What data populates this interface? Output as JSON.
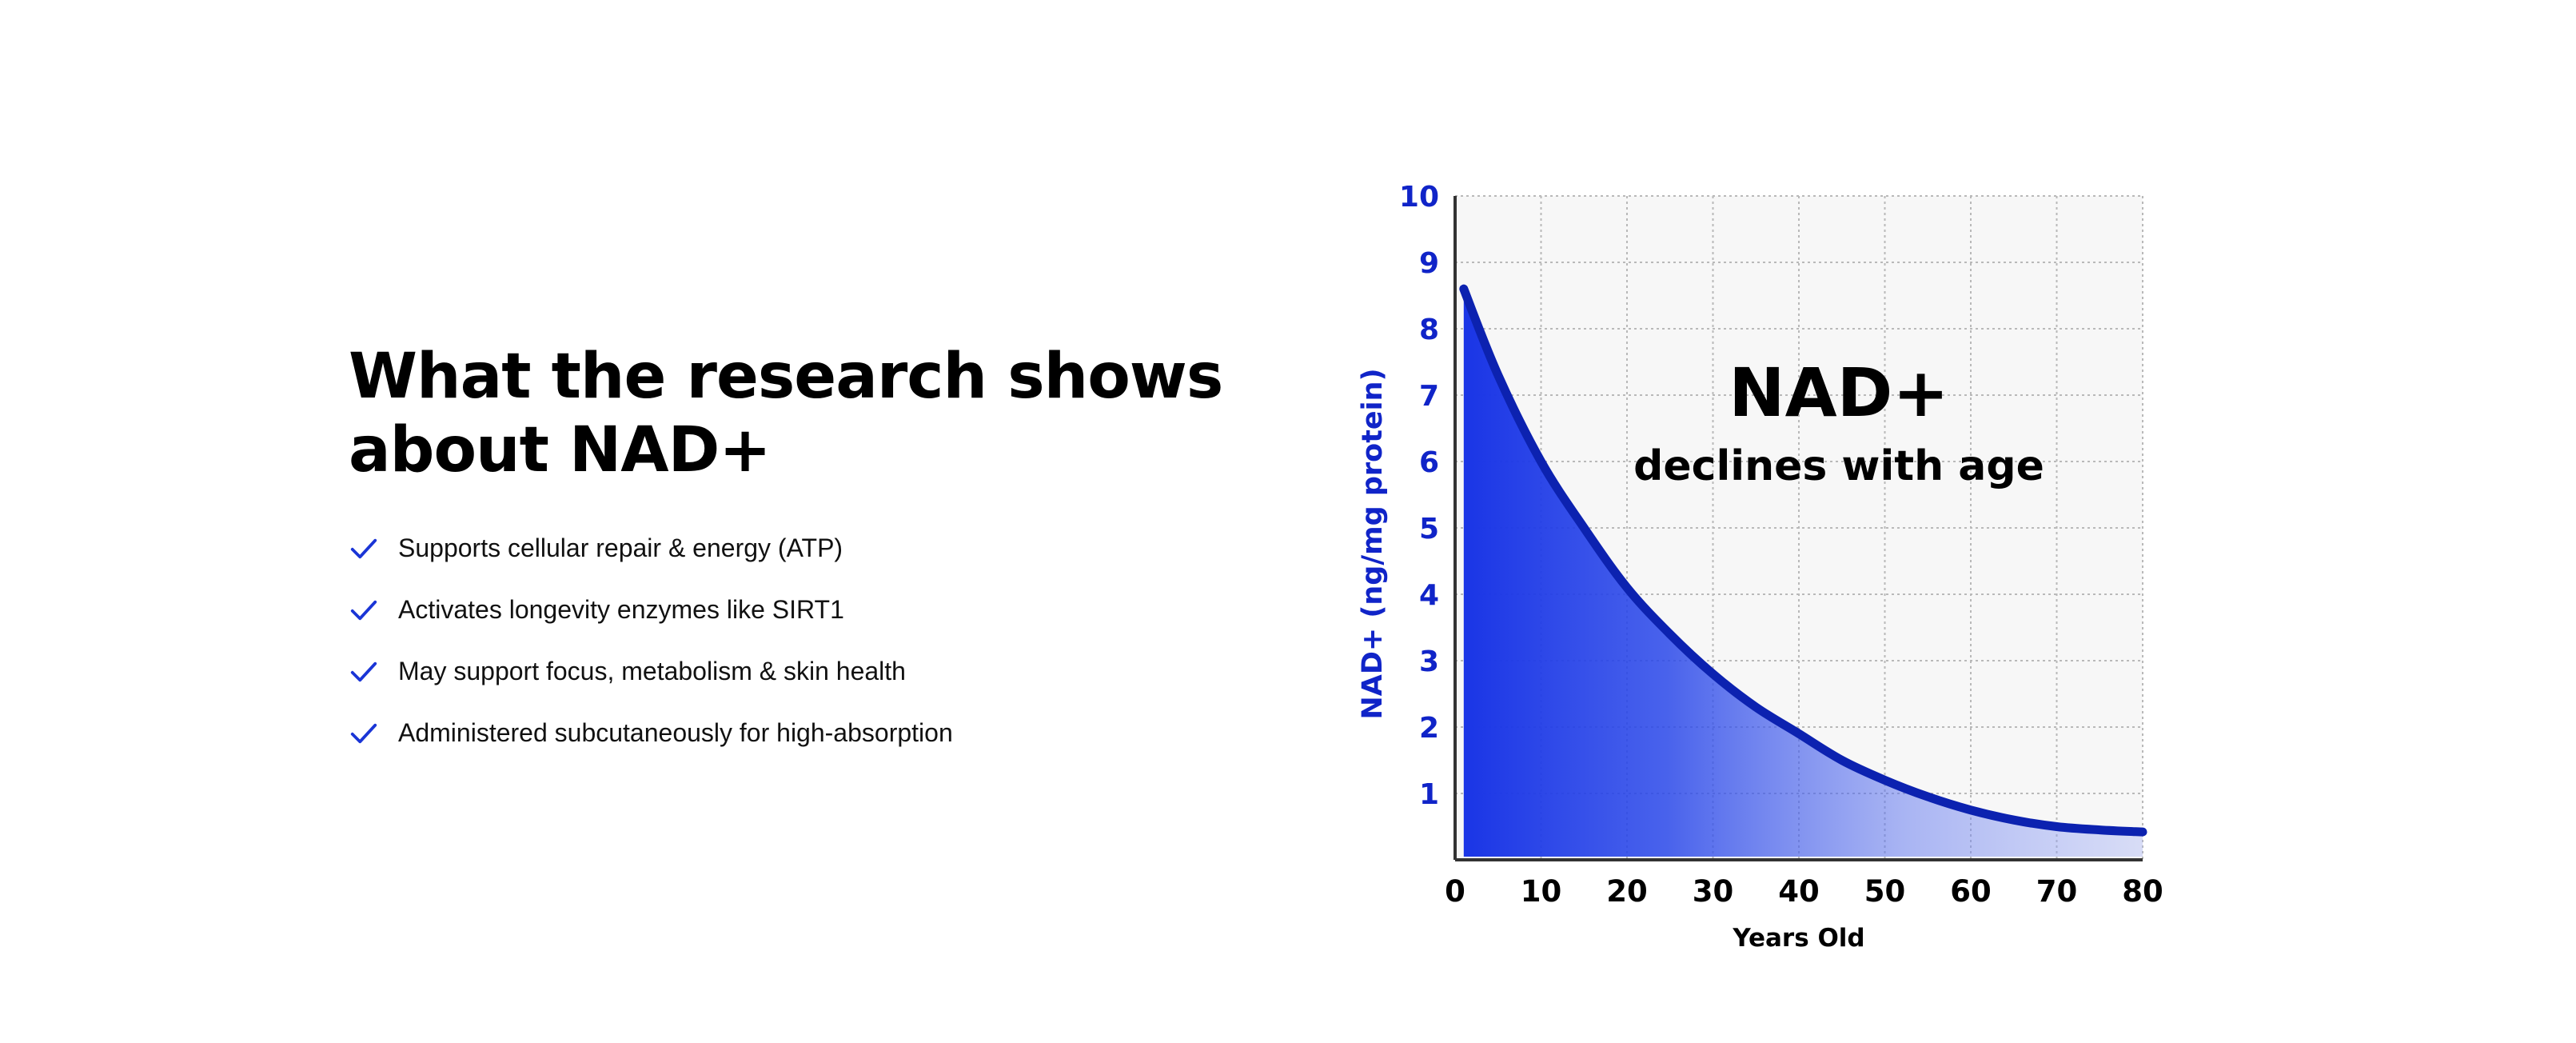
{
  "headline": {
    "line1": "What the research shows",
    "line2": "about NAD+"
  },
  "benefits": [
    "Supports cellular repair & energy (ATP)",
    "Activates longevity enzymes like SIRT1",
    "May support focus, metabolism & skin health",
    "Administered subcutaneously for high-absorption"
  ],
  "icons": {
    "bullet": "checkmark-icon"
  },
  "colors": {
    "accent": "#1a35d6",
    "curve": "#0c22b0",
    "axis_label": "#1024c8",
    "plot_bg": "#f7f7f7",
    "grid": "#b9b9b9"
  },
  "chart_data": {
    "type": "area",
    "title": "NAD+",
    "subtitle": "declines with age",
    "xlabel": "Years Old",
    "ylabel": "NAD+ (ng/mg protein)",
    "xlim": [
      0,
      80
    ],
    "ylim": [
      0,
      10
    ],
    "xticks": [
      0,
      10,
      20,
      30,
      40,
      50,
      60,
      70,
      80
    ],
    "yticks": [
      1,
      2,
      3,
      4,
      5,
      6,
      7,
      8,
      9,
      10
    ],
    "grid": true,
    "series": [
      {
        "name": "NAD+",
        "x": [
          1,
          5,
          10,
          15,
          20,
          25,
          30,
          35,
          40,
          45,
          50,
          55,
          60,
          65,
          70,
          75,
          80
        ],
        "values": [
          8.6,
          7.3,
          6.0,
          5.0,
          4.1,
          3.4,
          2.8,
          2.3,
          1.9,
          1.5,
          1.2,
          0.95,
          0.75,
          0.6,
          0.5,
          0.45,
          0.42
        ]
      }
    ]
  }
}
